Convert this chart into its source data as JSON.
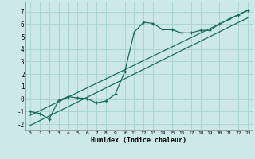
{
  "title": "",
  "xlabel": "Humidex (Indice chaleur)",
  "background_color": "#cce8e8",
  "grid_color": "#aad4d4",
  "line_color": "#1a6b5a",
  "xlim": [
    -0.5,
    23.5
  ],
  "ylim": [
    -2.5,
    7.8
  ],
  "xticks": [
    0,
    1,
    2,
    3,
    4,
    5,
    6,
    7,
    8,
    9,
    10,
    11,
    12,
    13,
    14,
    15,
    16,
    17,
    18,
    19,
    20,
    21,
    22,
    23
  ],
  "yticks": [
    -2,
    -1,
    0,
    1,
    2,
    3,
    4,
    5,
    6,
    7
  ],
  "line1_x": [
    0,
    1,
    2,
    3,
    4,
    5,
    6,
    7,
    8,
    9,
    10,
    11,
    12,
    13,
    14,
    15,
    16,
    17,
    18,
    19,
    20,
    21,
    22,
    23
  ],
  "line1_y": [
    -1.0,
    -1.15,
    -1.6,
    -0.1,
    0.2,
    0.1,
    0.05,
    -0.3,
    -0.15,
    0.4,
    2.2,
    5.35,
    6.15,
    6.05,
    5.55,
    5.55,
    5.3,
    5.3,
    5.5,
    5.5,
    6.0,
    6.4,
    6.75,
    7.1
  ],
  "line2_x": [
    0,
    23
  ],
  "line2_y": [
    -1.3,
    7.1
  ],
  "line3_x": [
    0,
    23
  ],
  "line3_y": [
    -2.1,
    6.5
  ]
}
